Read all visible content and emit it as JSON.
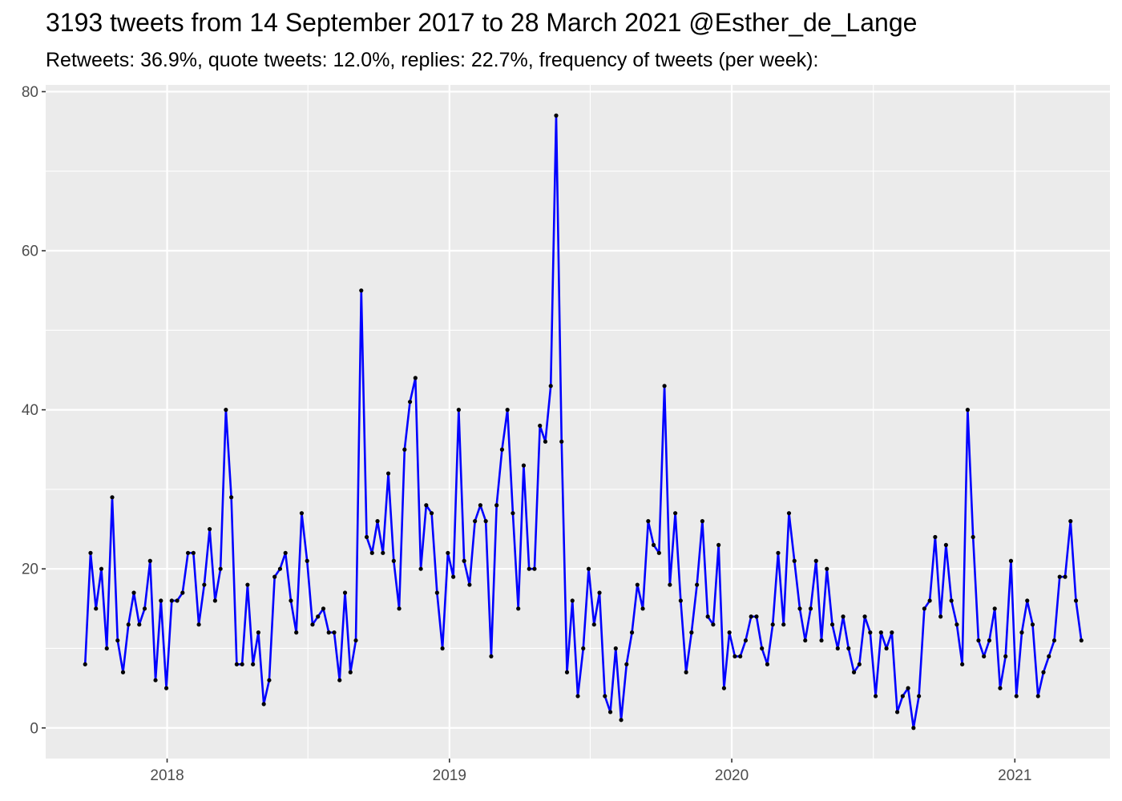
{
  "title": "3193 tweets from 14 September 2017 to 28 March 2021 @Esther_de_Lange",
  "subtitle": "Retweets: 36.9%, quote tweets: 12.0%, replies: 22.7%, frequency of tweets (per week):",
  "colors": {
    "panel": "#ebebeb",
    "grid": "#ffffff",
    "line": "#0000ff",
    "point": "#000000",
    "tick_text": "#4d4d4d"
  },
  "chart_data": {
    "type": "line",
    "title": "3193 tweets from 14 September 2017 to 28 March 2021 @Esther_de_Lange",
    "subtitle": "Retweets: 36.9%, quote tweets: 12.0%, replies: 22.7%, frequency of tweets (per week):",
    "xlabel": "",
    "ylabel": "",
    "x_ticks": [
      "2018",
      "2019",
      "2020",
      "2021"
    ],
    "y_ticks": [
      0,
      20,
      40,
      60,
      80
    ],
    "ylim": [
      -3.85,
      80.85
    ],
    "xlim": [
      "2017-07-28",
      "2021-05-04"
    ],
    "grid": true,
    "x": [
      "2017-09-17",
      "2017-09-24",
      "2017-10-01",
      "2017-10-08",
      "2017-10-15",
      "2017-10-22",
      "2017-10-29",
      "2017-11-05",
      "2017-11-12",
      "2017-11-19",
      "2017-11-26",
      "2017-12-03",
      "2017-12-10",
      "2017-12-17",
      "2017-12-24",
      "2017-12-31",
      "2018-01-07",
      "2018-01-14",
      "2018-01-21",
      "2018-01-28",
      "2018-02-04",
      "2018-02-11",
      "2018-02-18",
      "2018-02-25",
      "2018-03-04",
      "2018-03-11",
      "2018-03-18",
      "2018-03-25",
      "2018-04-01",
      "2018-04-08",
      "2018-04-15",
      "2018-04-22",
      "2018-04-29",
      "2018-05-06",
      "2018-05-13",
      "2018-05-20",
      "2018-05-27",
      "2018-06-03",
      "2018-06-10",
      "2018-06-17",
      "2018-06-24",
      "2018-07-01",
      "2018-07-08",
      "2018-07-15",
      "2018-07-22",
      "2018-07-29",
      "2018-08-05",
      "2018-08-12",
      "2018-08-19",
      "2018-08-26",
      "2018-09-02",
      "2018-09-09",
      "2018-09-16",
      "2018-09-23",
      "2018-09-30",
      "2018-10-07",
      "2018-10-14",
      "2018-10-21",
      "2018-10-28",
      "2018-11-04",
      "2018-11-11",
      "2018-11-18",
      "2018-11-25",
      "2018-12-02",
      "2018-12-09",
      "2018-12-16",
      "2018-12-23",
      "2018-12-30",
      "2019-01-06",
      "2019-01-13",
      "2019-01-20",
      "2019-01-27",
      "2019-02-03",
      "2019-02-10",
      "2019-02-17",
      "2019-02-24",
      "2019-03-03",
      "2019-03-10",
      "2019-03-17",
      "2019-03-24",
      "2019-03-31",
      "2019-04-07",
      "2019-04-14",
      "2019-04-21",
      "2019-04-28",
      "2019-05-05",
      "2019-05-12",
      "2019-05-19",
      "2019-05-26",
      "2019-06-02",
      "2019-06-09",
      "2019-06-16",
      "2019-06-23",
      "2019-06-30",
      "2019-07-07",
      "2019-07-14",
      "2019-07-21",
      "2019-07-28",
      "2019-08-04",
      "2019-08-11",
      "2019-08-18",
      "2019-08-25",
      "2019-09-01",
      "2019-09-08",
      "2019-09-15",
      "2019-09-22",
      "2019-09-29",
      "2019-10-06",
      "2019-10-13",
      "2019-10-20",
      "2019-10-27",
      "2019-11-03",
      "2019-11-10",
      "2019-11-17",
      "2019-11-24",
      "2019-12-01",
      "2019-12-08",
      "2019-12-15",
      "2019-12-22",
      "2019-12-29",
      "2020-01-05",
      "2020-01-12",
      "2020-01-19",
      "2020-01-26",
      "2020-02-02",
      "2020-02-09",
      "2020-02-16",
      "2020-02-23",
      "2020-03-01",
      "2020-03-08",
      "2020-03-15",
      "2020-03-22",
      "2020-03-29",
      "2020-04-05",
      "2020-04-12",
      "2020-04-19",
      "2020-04-26",
      "2020-05-03",
      "2020-05-10",
      "2020-05-17",
      "2020-05-24",
      "2020-05-31",
      "2020-06-07",
      "2020-06-14",
      "2020-06-21",
      "2020-06-28",
      "2020-07-05",
      "2020-07-12",
      "2020-07-19",
      "2020-07-26",
      "2020-08-02",
      "2020-08-09",
      "2020-08-16",
      "2020-08-23",
      "2020-08-30",
      "2020-09-06",
      "2020-09-13",
      "2020-09-20",
      "2020-09-27",
      "2020-10-04",
      "2020-10-11",
      "2020-10-18",
      "2020-10-25",
      "2020-11-01",
      "2020-11-08",
      "2020-11-15",
      "2020-11-22",
      "2020-11-29",
      "2020-12-06",
      "2020-12-13",
      "2020-12-20",
      "2020-12-27",
      "2021-01-03",
      "2021-01-10",
      "2021-01-17",
      "2021-01-24",
      "2021-01-31",
      "2021-02-07",
      "2021-02-14",
      "2021-02-21",
      "2021-02-28",
      "2021-03-07",
      "2021-03-14",
      "2021-03-21",
      "2021-03-28"
    ],
    "series": [
      {
        "values": [
          8,
          22,
          15,
          20,
          10,
          29,
          11,
          7,
          13,
          17,
          13,
          15,
          21,
          6,
          16,
          5,
          16,
          16,
          17,
          22,
          22,
          13,
          18,
          25,
          16,
          20,
          40,
          29,
          8,
          8,
          18,
          8,
          12,
          3,
          6,
          19,
          20,
          22,
          16,
          12,
          27,
          21,
          13,
          14,
          15,
          12,
          12,
          6,
          17,
          7,
          11,
          55,
          24,
          22,
          26,
          22,
          32,
          21,
          15,
          35,
          41,
          44,
          20,
          28,
          27,
          17,
          10,
          22,
          19,
          40,
          21,
          18,
          26,
          28,
          26,
          9,
          28,
          35,
          40,
          27,
          15,
          33,
          20,
          20,
          38,
          36,
          43,
          77,
          36,
          7,
          16,
          4,
          10,
          20,
          13,
          17,
          4,
          2,
          10,
          1,
          8,
          12,
          18,
          15,
          26,
          23,
          22,
          43,
          18,
          27,
          16,
          7,
          12,
          18,
          26,
          14,
          13,
          23,
          5,
          12,
          9,
          9,
          11,
          14,
          14,
          10,
          8,
          13,
          22,
          13,
          27,
          21,
          15,
          11,
          15,
          21,
          11,
          20,
          13,
          10,
          14,
          10,
          7,
          8,
          14,
          12,
          4,
          12,
          10,
          12,
          2,
          4,
          5,
          0,
          4,
          15,
          16,
          24,
          14,
          23,
          16,
          13,
          8,
          40,
          24,
          11,
          9,
          11,
          15,
          5,
          9,
          21,
          4,
          12,
          16,
          13,
          4,
          7,
          9,
          11,
          19,
          19,
          26,
          16,
          11
        ]
      }
    ]
  }
}
